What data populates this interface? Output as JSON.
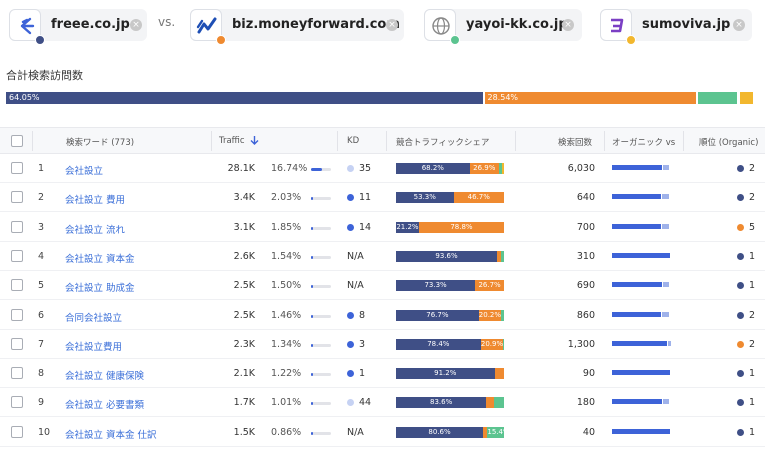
{
  "colors": {
    "freee": "#3f4f86",
    "moneyforward": "#ef8a30",
    "yayoi": "#5cc490",
    "sumoviva": "#f2b72e",
    "link": "#3b6fd8",
    "organic_blue": "#3d63d8",
    "organic_light": "#9fb2ea",
    "kd_blue": "#3d63d8",
    "kd_light": "#c6d2f3"
  },
  "competitors": [
    {
      "domain": "freee.co.jp",
      "icon": "freee-logo-icon",
      "color": "#3f4f86"
    },
    {
      "domain": "biz.moneyforward.com",
      "icon": "moneyforward-logo-icon",
      "color": "#ef8a30"
    },
    {
      "domain": "yayoi-kk.co.jp",
      "icon": "globe-icon",
      "color": "#5cc490"
    },
    {
      "domain": "sumoviva.jp",
      "icon": "sumoviva-logo-icon",
      "color": "#f2b72e"
    }
  ],
  "vs_label": "vs.",
  "visits_section": {
    "title": "合計検索訪問数",
    "shares": [
      {
        "label": "64.05%",
        "value": 64.05,
        "color": "#3f4f86"
      },
      {
        "label": "28.54%",
        "value": 28.54,
        "color": "#ef8a30"
      },
      {
        "label": "",
        "value": 5.6,
        "color": "#5cc490"
      },
      {
        "label": "",
        "value": 1.81,
        "color": "#f2b72e"
      }
    ]
  },
  "table": {
    "headers": {
      "keyword": "検索ワード (773)",
      "traffic": "Traffic",
      "kd": "KD",
      "share": "競合トラフィックシェア",
      "volume": "検索回数",
      "organic": "オーガニック vs 有",
      "rank": "順位 (Organic)"
    },
    "rows": [
      {
        "num": "1",
        "keyword": "会社設立",
        "traffic": "28.1K",
        "pct": "16.74%",
        "pct_value": 16.74,
        "kd": "35",
        "kd_level": "light",
        "share": [
          {
            "v": 68.2,
            "label": "68.2%",
            "c": "#3f4f86"
          },
          {
            "v": 26.9,
            "label": "26.9%",
            "c": "#ef8a30"
          },
          {
            "v": 3.3,
            "label": "",
            "c": "#5cc490"
          },
          {
            "v": 1.6,
            "label": "",
            "c": "#f2b72e"
          }
        ],
        "volume": "6,030",
        "organic": 0.86,
        "paid": 0.1,
        "rank": "2",
        "rank_color": "#3f4f86"
      },
      {
        "num": "2",
        "keyword": "会社設立 費用",
        "traffic": "3.4K",
        "pct": "2.03%",
        "pct_value": 2.03,
        "kd": "11",
        "kd_level": "blue",
        "share": [
          {
            "v": 53.3,
            "label": "53.3%",
            "c": "#3f4f86"
          },
          {
            "v": 46.7,
            "label": "46.7%",
            "c": "#ef8a30"
          }
        ],
        "volume": "640",
        "organic": 0.84,
        "paid": 0.12,
        "rank": "2",
        "rank_color": "#3f4f86"
      },
      {
        "num": "3",
        "keyword": "会社設立 流れ",
        "traffic": "3.1K",
        "pct": "1.85%",
        "pct_value": 1.85,
        "kd": "14",
        "kd_level": "blue",
        "share": [
          {
            "v": 21.2,
            "label": "21.2%",
            "c": "#3f4f86"
          },
          {
            "v": 78.8,
            "label": "78.8%",
            "c": "#ef8a30"
          }
        ],
        "volume": "700",
        "organic": 0.84,
        "paid": 0.12,
        "rank": "5",
        "rank_color": "#ef8a30"
      },
      {
        "num": "4",
        "keyword": "会社設立 資本金",
        "traffic": "2.6K",
        "pct": "1.54%",
        "pct_value": 1.54,
        "kd": "N/A",
        "kd_level": "none",
        "share": [
          {
            "v": 93.6,
            "label": "93.6%",
            "c": "#3f4f86"
          },
          {
            "v": 4.0,
            "label": "",
            "c": "#ef8a30"
          },
          {
            "v": 2.4,
            "label": "",
            "c": "#5cc490"
          }
        ],
        "volume": "310",
        "organic": 1.0,
        "paid": 0,
        "rank": "1",
        "rank_color": "#3f4f86"
      },
      {
        "num": "5",
        "keyword": "会社設立 助成金",
        "traffic": "2.5K",
        "pct": "1.50%",
        "pct_value": 1.5,
        "kd": "N/A",
        "kd_level": "none",
        "share": [
          {
            "v": 73.3,
            "label": "73.3%",
            "c": "#3f4f86"
          },
          {
            "v": 26.7,
            "label": "26.7%",
            "c": "#ef8a30"
          }
        ],
        "volume": "690",
        "organic": 0.86,
        "paid": 0.1,
        "rank": "1",
        "rank_color": "#3f4f86"
      },
      {
        "num": "6",
        "keyword": "合同会社設立",
        "traffic": "2.5K",
        "pct": "1.46%",
        "pct_value": 1.46,
        "kd": "8",
        "kd_level": "blue",
        "share": [
          {
            "v": 76.7,
            "label": "76.7%",
            "c": "#3f4f86"
          },
          {
            "v": 20.2,
            "label": "20.2%",
            "c": "#ef8a30"
          },
          {
            "v": 3.1,
            "label": "",
            "c": "#5cc490"
          }
        ],
        "volume": "860",
        "organic": 0.84,
        "paid": 0.12,
        "rank": "2",
        "rank_color": "#3f4f86"
      },
      {
        "num": "7",
        "keyword": "会社設立費用",
        "traffic": "2.3K",
        "pct": "1.34%",
        "pct_value": 1.34,
        "kd": "3",
        "kd_level": "blue",
        "share": [
          {
            "v": 78.4,
            "label": "78.4%",
            "c": "#3f4f86"
          },
          {
            "v": 20.9,
            "label": "20.9%",
            "c": "#ef8a30"
          },
          {
            "v": 0.7,
            "label": "",
            "c": "#5cc490"
          }
        ],
        "volume": "1,300",
        "organic": 0.95,
        "paid": 0.05,
        "rank": "2",
        "rank_color": "#ef8a30"
      },
      {
        "num": "8",
        "keyword": "会社設立 健康保険",
        "traffic": "2.1K",
        "pct": "1.22%",
        "pct_value": 1.22,
        "kd": "1",
        "kd_level": "blue",
        "share": [
          {
            "v": 91.2,
            "label": "91.2%",
            "c": "#3f4f86"
          },
          {
            "v": 8.8,
            "label": "",
            "c": "#ef8a30"
          }
        ],
        "volume": "90",
        "organic": 1.0,
        "paid": 0,
        "rank": "1",
        "rank_color": "#3f4f86"
      },
      {
        "num": "9",
        "keyword": "会社設立 必要書類",
        "traffic": "1.7K",
        "pct": "1.01%",
        "pct_value": 1.01,
        "kd": "44",
        "kd_level": "light",
        "share": [
          {
            "v": 83.6,
            "label": "83.6%",
            "c": "#3f4f86"
          },
          {
            "v": 7.4,
            "label": "",
            "c": "#ef8a30"
          },
          {
            "v": 9.0,
            "label": "",
            "c": "#5cc490"
          }
        ],
        "volume": "180",
        "organic": 0.86,
        "paid": 0.1,
        "rank": "1",
        "rank_color": "#3f4f86"
      },
      {
        "num": "10",
        "keyword": "会社設立 資本金 仕訳",
        "traffic": "1.5K",
        "pct": "0.86%",
        "pct_value": 0.86,
        "kd": "N/A",
        "kd_level": "none",
        "share": [
          {
            "v": 80.6,
            "label": "80.6%",
            "c": "#3f4f86"
          },
          {
            "v": 4.0,
            "label": "",
            "c": "#ef8a30"
          },
          {
            "v": 15.4,
            "label": "15.4%",
            "c": "#5cc490"
          }
        ],
        "volume": "40",
        "organic": 1.0,
        "paid": 0,
        "rank": "1",
        "rank_color": "#3f4f86"
      }
    ]
  }
}
